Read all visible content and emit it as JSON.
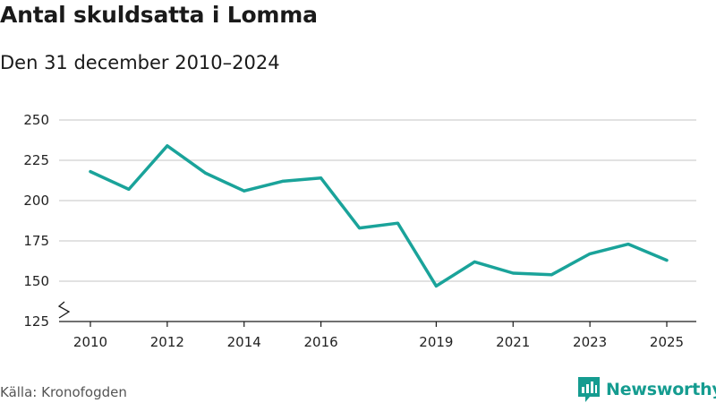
{
  "title": "Antal skuldsatta i Lomma",
  "subtitle": "Den 31 december 2010–2024",
  "source": "Källa: Kronofogden",
  "brand": {
    "name": "Newsworthy",
    "icon": "newsworthy-logo-icon"
  },
  "colors": {
    "line": "#1aa39a",
    "grid": "#d9d9d9",
    "axis": "#1a1a1a",
    "brand": "#159c90"
  },
  "chart_data": {
    "type": "line",
    "title": "Antal skuldsatta i Lomma",
    "subtitle": "Den 31 december 2010–2024",
    "xlabel": "",
    "ylabel": "",
    "x": [
      2010,
      2011,
      2012,
      2013,
      2014,
      2015,
      2016,
      2017,
      2018,
      2019,
      2020,
      2021,
      2022,
      2023,
      2024,
      2025
    ],
    "values": [
      218,
      207,
      234,
      217,
      206,
      212,
      214,
      183,
      186,
      147,
      162,
      155,
      154,
      167,
      173,
      163
    ],
    "xlim": [
      2010,
      2025
    ],
    "ylim": [
      125,
      250
    ],
    "y_ticks": [
      "250",
      "225",
      "200",
      "175",
      "150",
      "125"
    ],
    "y_tick_values": [
      250,
      225,
      200,
      175,
      150,
      125
    ],
    "x_ticks": [
      "2010",
      "2012",
      "2014",
      "2016",
      "2019",
      "2021",
      "2023",
      "2025"
    ],
    "x_tick_values": [
      2010,
      2012,
      2014,
      2016,
      2019,
      2021,
      2023,
      2025
    ],
    "axis_break": true,
    "grid": true
  }
}
